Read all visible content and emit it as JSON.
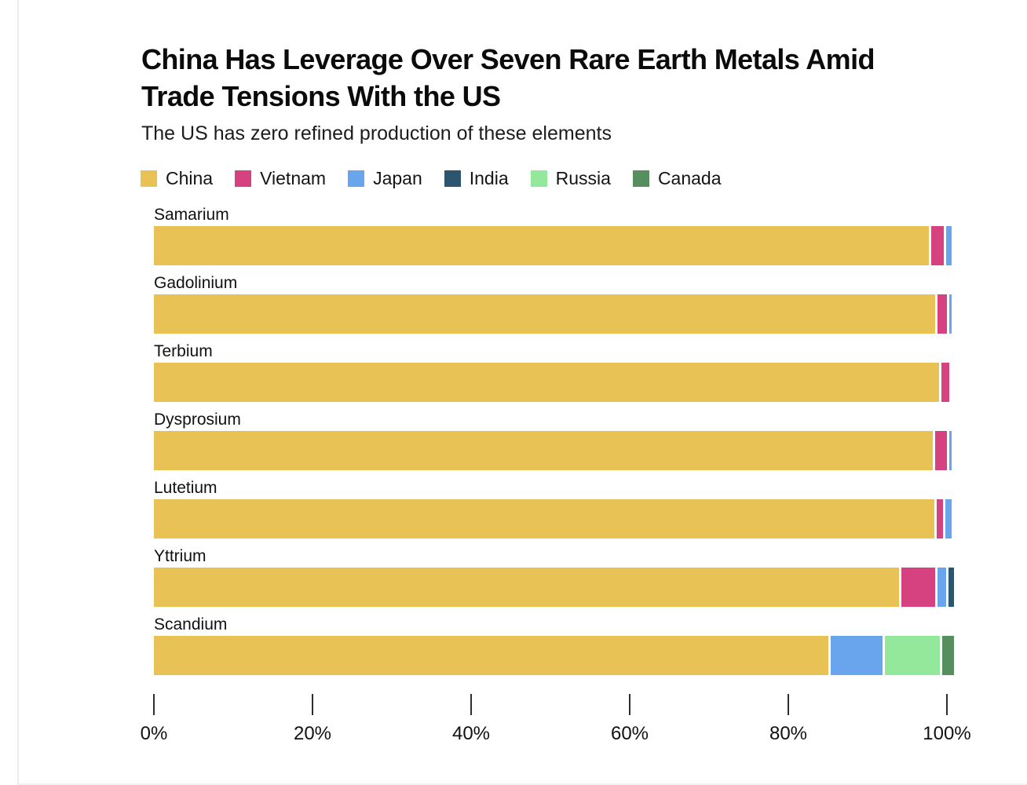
{
  "page": {
    "title_lines": [
      "China Has Leverage Over Seven Rare Earth Metals Amid",
      "Trade Tensions With the US"
    ],
    "subtitle": "The US has zero refined production of these elements"
  },
  "chart_data": {
    "type": "bar",
    "orientation": "horizontal",
    "stacked": true,
    "title": "China Has Leverage Over Seven Rare Earth Metals Amid Trade Tensions With the US",
    "subtitle": "The US has zero refined production of these elements",
    "value_unit": "percent of refined production",
    "xlim": [
      0,
      100
    ],
    "x_ticks": [
      "0%",
      "20%",
      "40%",
      "60%",
      "80%",
      "100%"
    ],
    "grid": false,
    "legend_position": "top",
    "categories": [
      "Samarium",
      "Gadolinium",
      "Terbium",
      "Dysprosium",
      "Lutetium",
      "Yttrium",
      "Scandium"
    ],
    "series": [
      {
        "name": "China",
        "color": "#E8C254",
        "values": [
          97.7,
          98.5,
          99.0,
          98.2,
          98.4,
          94.0,
          85.0
        ]
      },
      {
        "name": "Vietnam",
        "color": "#D6417F",
        "values": [
          1.6,
          1.2,
          1.0,
          1.5,
          0.8,
          4.2,
          0
        ]
      },
      {
        "name": "Japan",
        "color": "#68A5EC",
        "values": [
          0.7,
          0.3,
          0,
          0.3,
          0.8,
          1.1,
          6.6
        ]
      },
      {
        "name": "India",
        "color": "#2E5570",
        "values": [
          0,
          0,
          0,
          0,
          0,
          0.7,
          0
        ]
      },
      {
        "name": "Russia",
        "color": "#94E89C",
        "values": [
          0,
          0,
          0,
          0,
          0,
          0,
          6.9
        ]
      },
      {
        "name": "Canada",
        "color": "#578E60",
        "values": [
          0,
          0,
          0,
          0,
          0,
          0,
          1.5
        ]
      }
    ]
  }
}
